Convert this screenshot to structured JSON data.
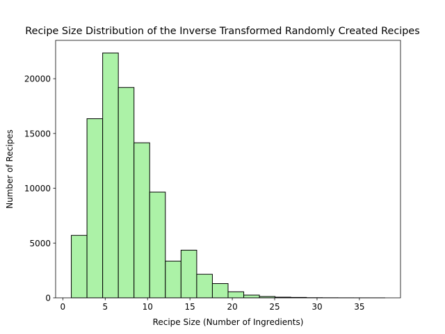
{
  "chart_data": {
    "type": "bar",
    "title": "Recipe Size Distribution of the Inverse Transformed Randomly Created Recipes",
    "xlabel": "Recipe Size (Number of Ingredients)",
    "ylabel": "Number of Recipes",
    "bar_color": "#acf2a7",
    "edge_color": "#000000",
    "bin_edges": [
      1.0,
      2.85,
      4.7,
      6.55,
      8.4,
      10.25,
      12.1,
      13.95,
      15.8,
      17.65,
      19.5,
      21.35,
      23.2,
      25.05,
      26.9,
      28.75,
      30.6,
      32.45,
      34.3,
      36.15,
      38.0
    ],
    "values": [
      5700,
      16350,
      22350,
      19200,
      14150,
      9650,
      3350,
      4350,
      2150,
      1300,
      550,
      250,
      120,
      60,
      40,
      15,
      8,
      4,
      2,
      1
    ],
    "xlim": [
      -0.85,
      39.85
    ],
    "ylim": [
      0,
      23500
    ],
    "xticks": [
      0,
      5,
      10,
      15,
      20,
      25,
      30,
      35
    ],
    "xtick_labels": [
      "0",
      "5",
      "10",
      "15",
      "20",
      "25",
      "30",
      "35"
    ],
    "yticks": [
      0,
      5000,
      10000,
      15000,
      20000
    ],
    "ytick_labels": [
      "0",
      "5000",
      "10000",
      "15000",
      "20000"
    ],
    "grid": false
  }
}
